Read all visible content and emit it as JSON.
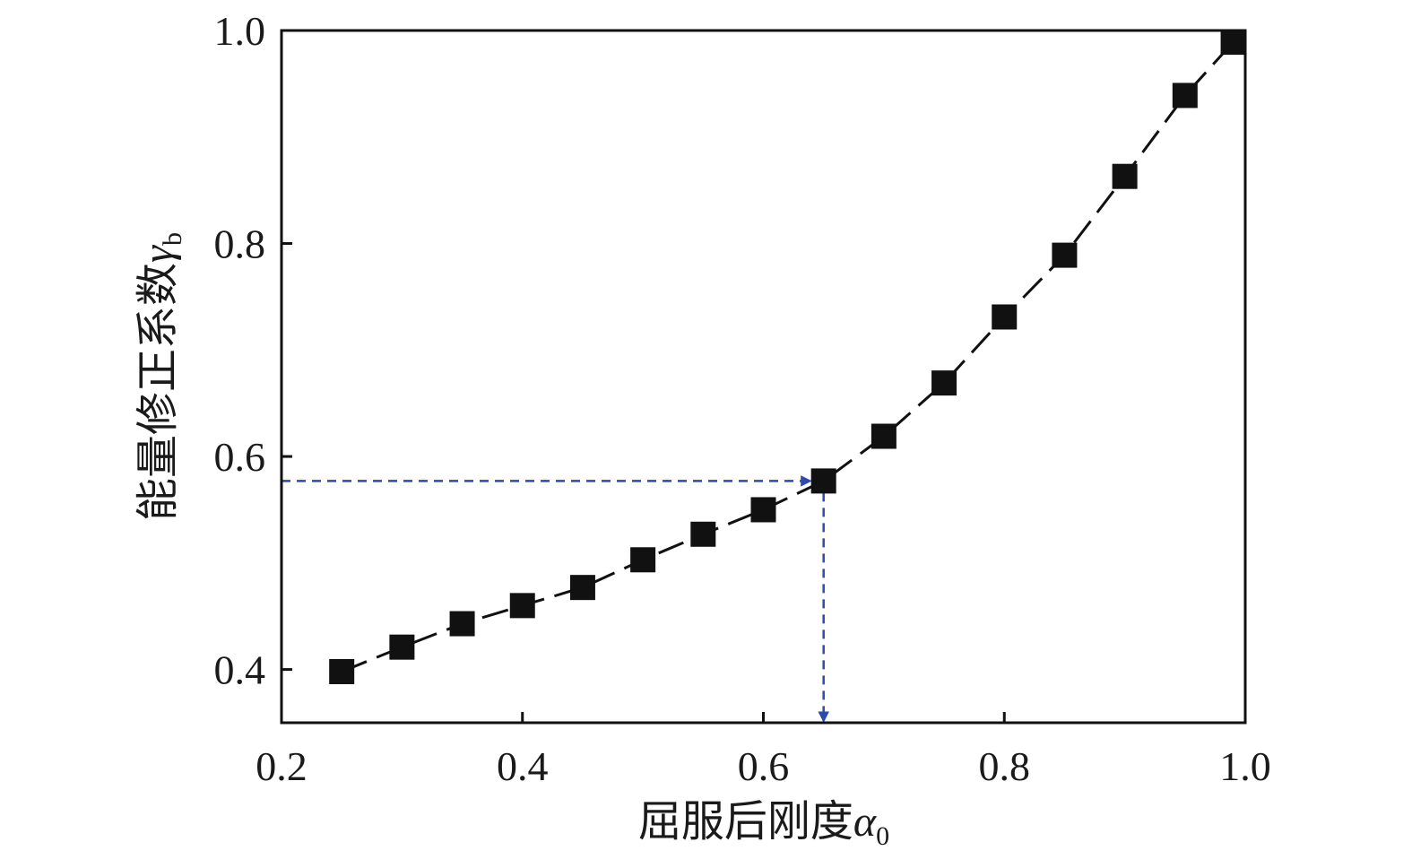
{
  "chart_data": {
    "type": "line",
    "title": "",
    "xlabel": "屈服后刚度",
    "xlabel_symbol": "α",
    "xlabel_subscript": "0",
    "ylabel": "能量修正系数",
    "ylabel_symbol": "γ",
    "ylabel_subscript": "b",
    "xlim": [
      0.2,
      1.0
    ],
    "ylim": [
      0.35,
      1.0
    ],
    "xticks": [
      0.2,
      0.4,
      0.6,
      0.8,
      1.0
    ],
    "xtick_labels": [
      "0.2",
      "0.4",
      "0.6",
      "0.8",
      "1.0"
    ],
    "yticks": [
      0.4,
      0.6,
      0.8,
      1.0
    ],
    "ytick_labels": [
      "0.4",
      "0.6",
      "0.8",
      "1.0"
    ],
    "grid": false,
    "legend": "none",
    "series": [
      {
        "marker": "filled-square",
        "line_style": "dashed",
        "color": "#111111",
        "x": [
          0.25,
          0.3,
          0.35,
          0.4,
          0.45,
          0.5,
          0.55,
          0.6,
          0.65,
          0.7,
          0.75,
          0.8,
          0.85,
          0.9,
          0.95,
          0.99
        ],
        "y": [
          0.398,
          0.421,
          0.443,
          0.46,
          0.477,
          0.503,
          0.527,
          0.55,
          0.577,
          0.619,
          0.669,
          0.731,
          0.789,
          0.863,
          0.939,
          0.989
        ]
      }
    ],
    "annotation": {
      "color": "#2e4bab",
      "line_style": "dashed",
      "x": 0.65,
      "y": 0.577
    }
  }
}
